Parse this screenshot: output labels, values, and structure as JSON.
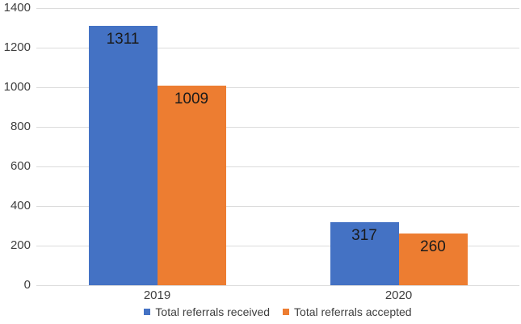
{
  "chart_data": {
    "type": "bar",
    "title": "",
    "xlabel": "",
    "ylabel": "",
    "categories": [
      "2019",
      "2020"
    ],
    "series": [
      {
        "name": "Total referrals received",
        "color": "#4472C4",
        "values": [
          1311,
          317
        ]
      },
      {
        "name": "Total referrals accepted",
        "color": "#ED7D31",
        "values": [
          1009,
          260
        ]
      }
    ],
    "data_labels": [
      [
        "1311",
        "317"
      ],
      [
        "1009",
        "260"
      ]
    ],
    "ylim": [
      0,
      1400
    ],
    "ytick_interval": 200,
    "ytick_labels": [
      "0",
      "200",
      "400",
      "600",
      "800",
      "1000",
      "1200",
      "1400"
    ],
    "grid": true,
    "legend_position": "bottom"
  },
  "colors": {
    "background": "#FFFFFF",
    "gridline": "#DCDCDC",
    "axis_text": "#3F3F3F",
    "data_label_text": "#1A1A1A",
    "series_received": "#4472C4",
    "series_accepted": "#ED7D31"
  }
}
